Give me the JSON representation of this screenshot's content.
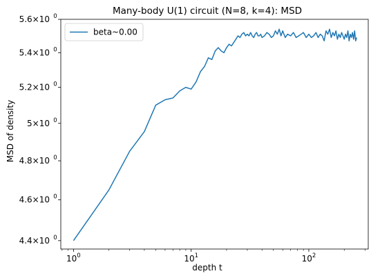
{
  "chart_data": {
    "type": "line",
    "title": "Many-body U(1) circuit (N=8, k=4): MSD",
    "xlabel": "depth t",
    "ylabel": "MSD of density",
    "xscale": "log",
    "yscale": "log",
    "xlim": [
      0.78,
      320
    ],
    "ylim": [
      4.36,
      5.6
    ],
    "x_ticks": [
      {
        "value": 1,
        "base": "10",
        "exp": "0"
      },
      {
        "value": 10,
        "base": "10",
        "exp": "1"
      },
      {
        "value": 100,
        "base": "10",
        "exp": "2"
      }
    ],
    "y_ticks": [
      {
        "value": 4.4,
        "mant": "4.4",
        "exp": "0"
      },
      {
        "value": 4.6,
        "mant": "4.6",
        "exp": "0"
      },
      {
        "value": 4.8,
        "mant": "4.8",
        "exp": "0"
      },
      {
        "value": 5.0,
        "mant": "5",
        "exp": "0"
      },
      {
        "value": 5.2,
        "mant": "5.2",
        "exp": "0"
      },
      {
        "value": 5.4,
        "mant": "5.4",
        "exp": "0"
      },
      {
        "value": 5.6,
        "mant": "5.6",
        "exp": "0"
      }
    ],
    "legend_position": "upper-left",
    "grid": false,
    "series": [
      {
        "name": "beta~0.00",
        "color": "#1f77b4",
        "x": [
          1,
          2,
          3,
          4,
          5,
          6,
          7,
          8,
          9,
          10,
          11,
          12,
          13,
          14,
          15,
          16,
          17,
          18,
          19,
          20,
          21,
          22,
          23,
          24,
          25,
          26,
          27,
          28,
          29,
          30,
          31,
          32,
          33,
          34,
          35,
          36,
          37,
          38,
          39,
          40,
          42,
          44,
          46,
          48,
          50,
          52,
          54,
          56,
          58,
          60,
          63,
          66,
          70,
          74,
          78,
          82,
          86,
          90,
          95,
          100,
          105,
          110,
          115,
          120,
          125,
          130,
          135,
          140,
          145,
          150,
          155,
          160,
          165,
          170,
          175,
          180,
          185,
          190,
          195,
          200,
          205,
          210,
          215,
          220,
          225,
          230,
          235,
          240,
          245,
          250,
          255
        ],
        "y": [
          4.4,
          4.65,
          4.85,
          4.955,
          5.1,
          5.13,
          5.14,
          5.18,
          5.2,
          5.19,
          5.23,
          5.29,
          5.32,
          5.37,
          5.36,
          5.41,
          5.43,
          5.41,
          5.4,
          5.43,
          5.45,
          5.44,
          5.46,
          5.48,
          5.5,
          5.49,
          5.51,
          5.52,
          5.5,
          5.51,
          5.5,
          5.52,
          5.5,
          5.49,
          5.51,
          5.52,
          5.5,
          5.5,
          5.51,
          5.49,
          5.5,
          5.52,
          5.51,
          5.49,
          5.5,
          5.53,
          5.51,
          5.54,
          5.5,
          5.53,
          5.49,
          5.51,
          5.5,
          5.52,
          5.49,
          5.5,
          5.51,
          5.52,
          5.49,
          5.51,
          5.49,
          5.5,
          5.52,
          5.49,
          5.51,
          5.5,
          5.47,
          5.53,
          5.51,
          5.54,
          5.49,
          5.52,
          5.5,
          5.53,
          5.48,
          5.51,
          5.49,
          5.52,
          5.5,
          5.48,
          5.51,
          5.49,
          5.53,
          5.47,
          5.51,
          5.49,
          5.52,
          5.48,
          5.53,
          5.47,
          5.49
        ]
      }
    ]
  }
}
